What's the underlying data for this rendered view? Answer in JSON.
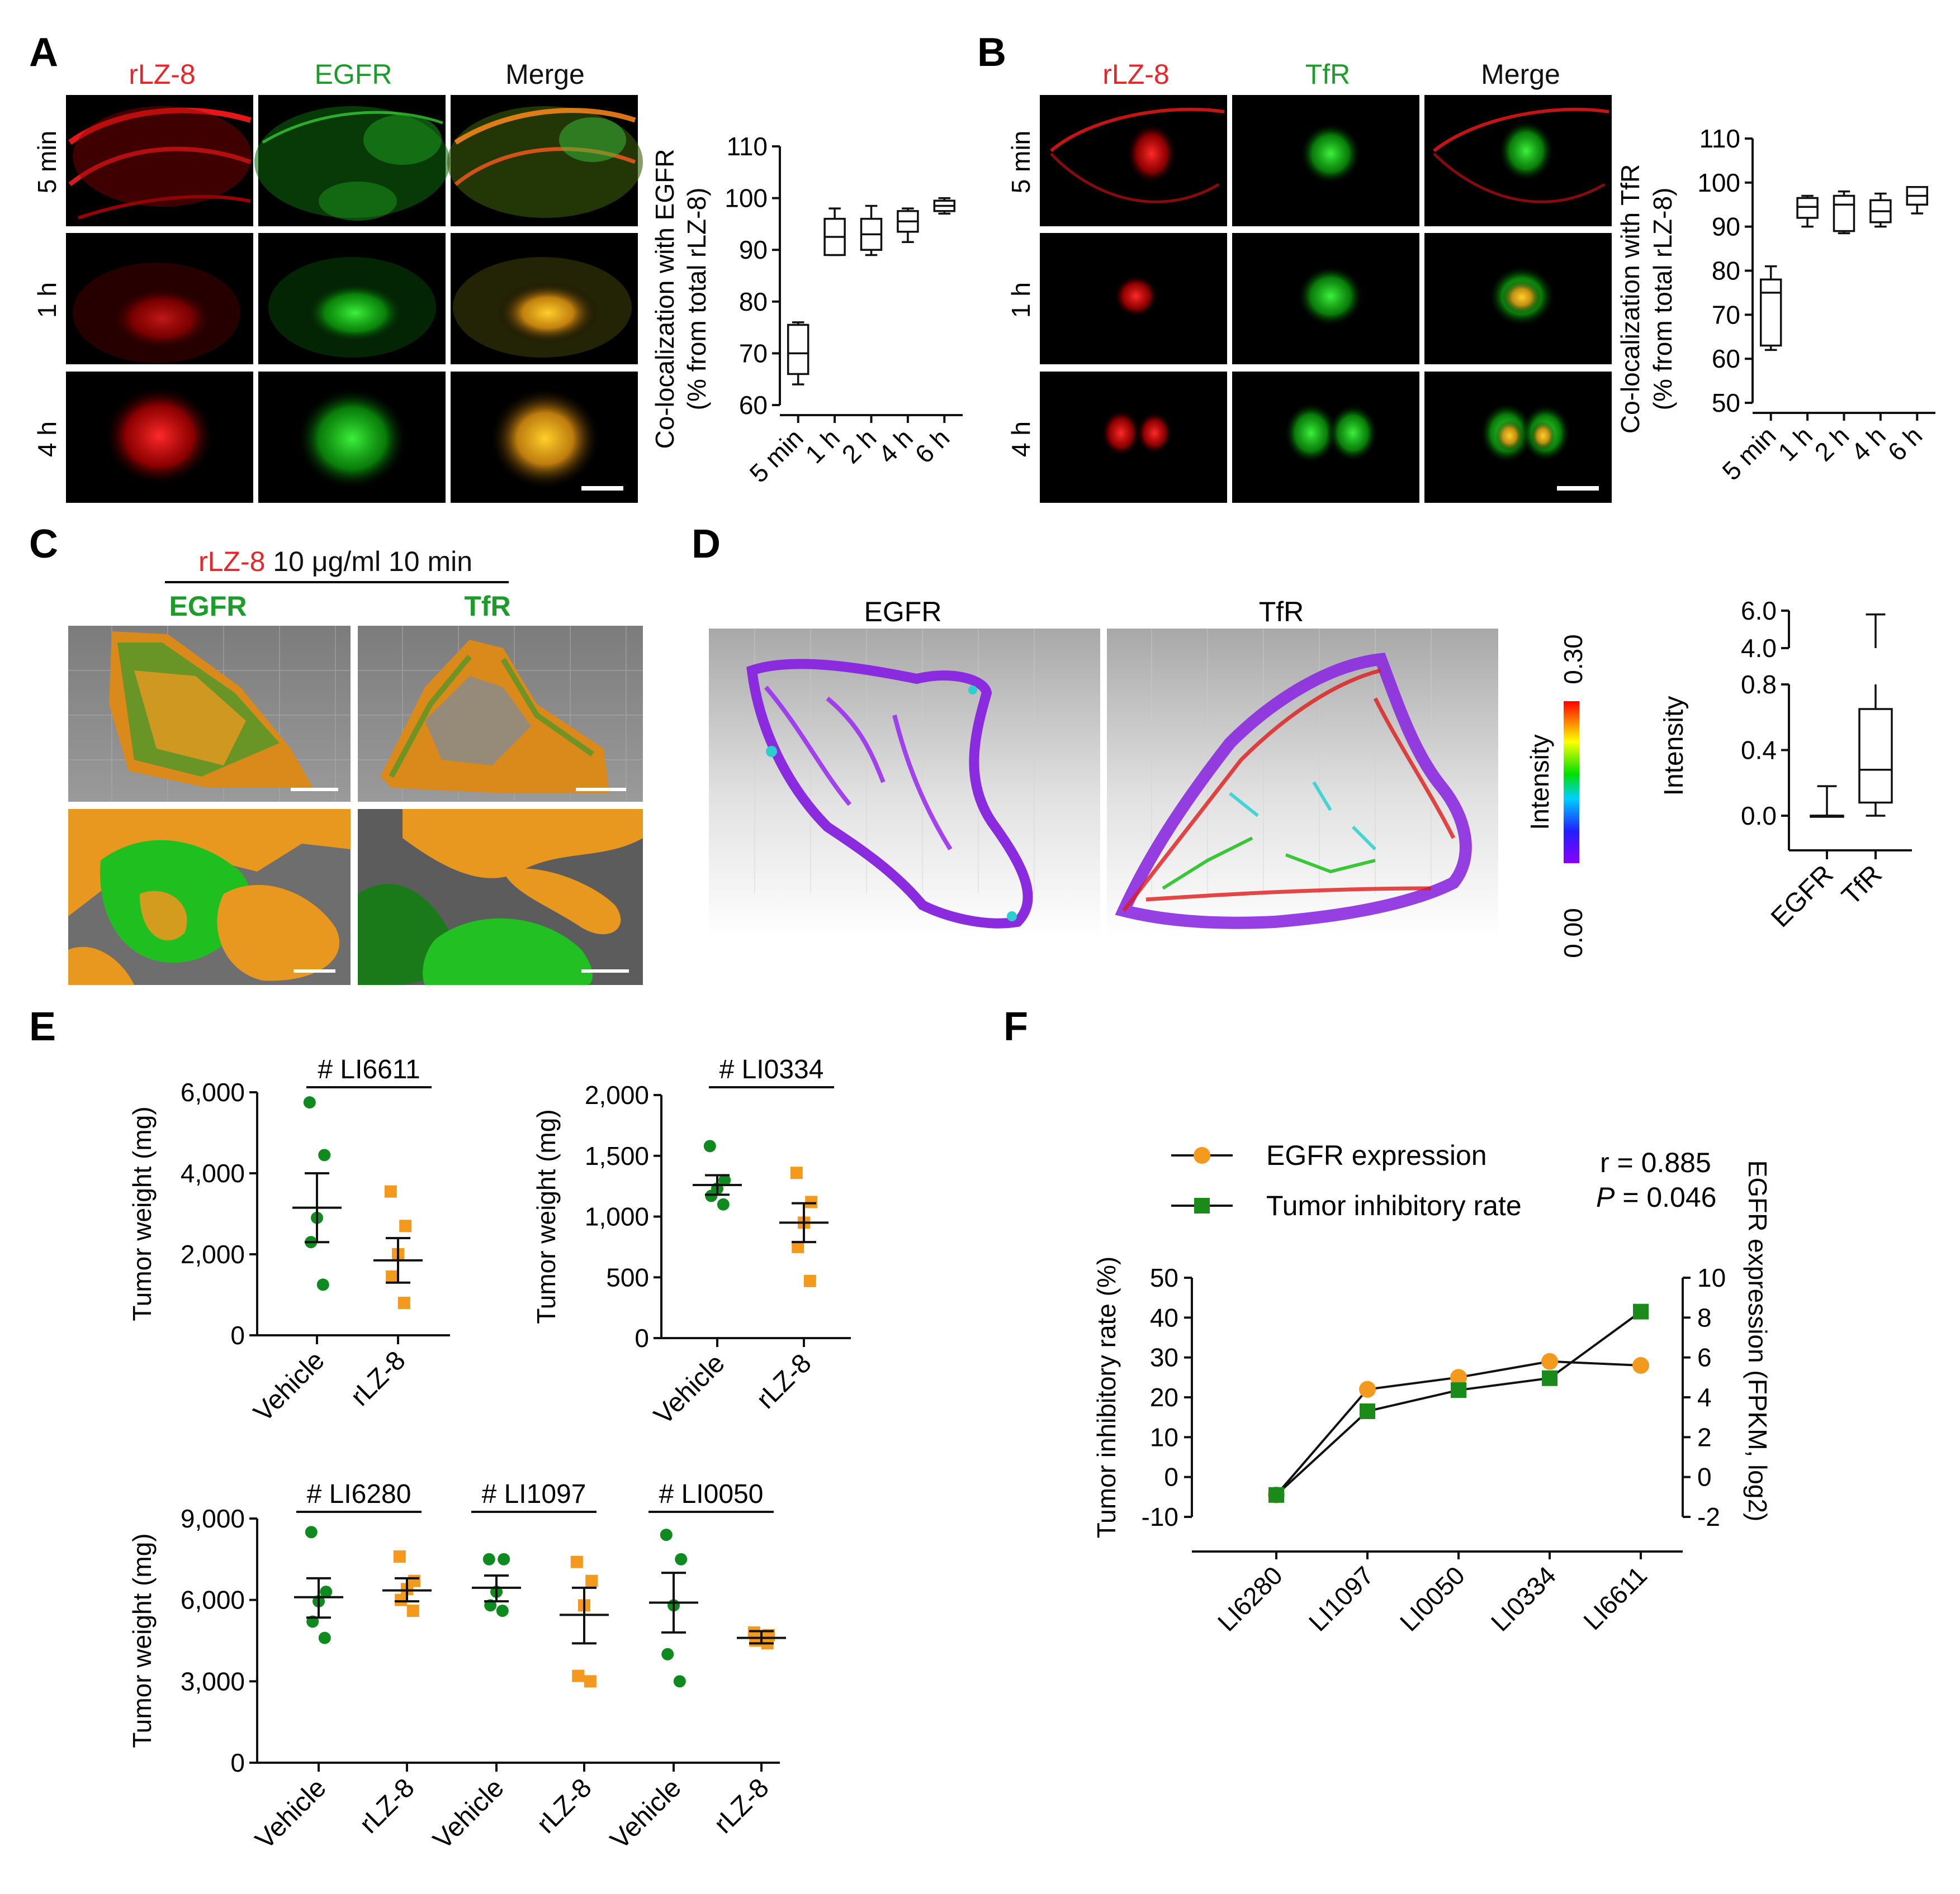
{
  "panels": {
    "A": {
      "letter": "A",
      "headers": [
        "rLZ-8",
        "EGFR",
        "Merge"
      ],
      "rows": [
        "5 min",
        "1 h",
        "4 h"
      ],
      "chart": {
        "type": "box",
        "ylabel_line1": "Co-localization with EGFR",
        "ylabel_line2": "(% from total rLZ-8)",
        "ylim": [
          60,
          110
        ],
        "yticks": [
          60,
          70,
          80,
          90,
          100,
          110
        ],
        "categories": [
          "5 min",
          "1 h",
          "2 h",
          "4 h",
          "6 h"
        ],
        "boxes": [
          {
            "min": 64,
            "q1": 66,
            "median": 70,
            "q3": 75.5,
            "max": 76
          },
          {
            "min": 89,
            "q1": 89,
            "median": 92.5,
            "q3": 96,
            "max": 98
          },
          {
            "min": 89,
            "q1": 90,
            "median": 93,
            "q3": 96,
            "max": 98.5
          },
          {
            "min": 91.5,
            "q1": 93.5,
            "median": 95.5,
            "q3": 97.5,
            "max": 98
          },
          {
            "min": 97,
            "q1": 97.5,
            "median": 98.5,
            "q3": 99.5,
            "max": 100
          }
        ]
      }
    },
    "B": {
      "letter": "B",
      "headers": [
        "rLZ-8",
        "TfR",
        "Merge"
      ],
      "rows": [
        "5 min",
        "1 h",
        "4 h"
      ],
      "chart": {
        "type": "box",
        "ylabel_line1": "Co-localization with TfR",
        "ylabel_line2": "(% from total rLZ-8)",
        "ylim": [
          50,
          110
        ],
        "yticks": [
          50,
          60,
          70,
          80,
          90,
          100,
          110
        ],
        "categories": [
          "5 min",
          "1 h",
          "2 h",
          "4 h",
          "6 h"
        ],
        "boxes": [
          {
            "min": 62,
            "q1": 63,
            "median": 75,
            "q3": 78,
            "max": 81
          },
          {
            "min": 90,
            "q1": 92,
            "median": 94.5,
            "q3": 96.5,
            "max": 97
          },
          {
            "min": 88.5,
            "q1": 89,
            "median": 95,
            "q3": 97,
            "max": 98
          },
          {
            "min": 90,
            "q1": 91,
            "median": 93.5,
            "q3": 96,
            "max": 97.5
          },
          {
            "min": 93,
            "q1": 95,
            "median": 97,
            "q3": 99,
            "max": 99
          }
        ]
      }
    },
    "C": {
      "letter": "C",
      "title_red": "rLZ-8",
      "title_rest": " 10 μg/ml 10 min",
      "col1": "EGFR",
      "col2": "TfR"
    },
    "D": {
      "letter": "D",
      "col1": "EGFR",
      "col2": "TfR",
      "colorbar_label": "Intensity",
      "colorbar_min": "0.00",
      "colorbar_max": "0.30",
      "chart": {
        "type": "box",
        "ylabel": "Intensity",
        "yticks_lower": [
          "0.0",
          "0.4",
          "0.8"
        ],
        "yticks_upper": [
          "4.0",
          "6.0"
        ],
        "categories": [
          "EGFR",
          "TfR"
        ],
        "boxes": [
          {
            "min": 0.0,
            "q1": 0.0,
            "median": 0.0,
            "q3": 0.0,
            "max": 0.18
          },
          {
            "min": 0.0,
            "q1": 0.08,
            "median": 0.28,
            "q3": 0.65,
            "max": 5.8
          }
        ]
      }
    },
    "E": {
      "letter": "E",
      "chart_data": [
        {
          "type": "scatter",
          "title": "# LI6611",
          "ylabel": "Tumor weight (mg)",
          "ylim": [
            0,
            6000
          ],
          "yticks": [
            "0",
            "2,000",
            "4,000",
            "6,000"
          ],
          "categories": [
            "Vehicle",
            "rLZ-8"
          ],
          "series": [
            {
              "name": "Vehicle",
              "values": [
                5750,
                4450,
                2900,
                2300,
                1250
              ],
              "mean": 3150,
              "sem_low": 2300,
              "sem_high": 4000
            },
            {
              "name": "rLZ-8",
              "values": [
                3550,
                2700,
                2000,
                1450,
                800
              ],
              "mean": 1850,
              "sem_low": 1300,
              "sem_high": 2400
            }
          ]
        },
        {
          "type": "scatter",
          "title": "# LI0334",
          "ylabel": "Tumor weight (mg)",
          "ylim": [
            0,
            2000
          ],
          "yticks": [
            "0",
            "500",
            "1,000",
            "1,500",
            "2,000"
          ],
          "categories": [
            "Vehicle",
            "rLZ-8"
          ],
          "series": [
            {
              "name": "Vehicle",
              "values": [
                1580,
                1300,
                1230,
                1170,
                1100
              ],
              "mean": 1260,
              "sem_low": 1180,
              "sem_high": 1340
            },
            {
              "name": "rLZ-8",
              "values": [
                1360,
                1120,
                950,
                750,
                470
              ],
              "mean": 950,
              "sem_low": 790,
              "sem_high": 1110
            }
          ]
        },
        {
          "type": "scatter",
          "titles": [
            "# LI6280",
            "# LI1097",
            "# LI0050"
          ],
          "ylabel": "Tumor weight (mg)",
          "ylim": [
            0,
            9000
          ],
          "yticks": [
            "0",
            "3,000",
            "6,000",
            "9,000"
          ],
          "categories": [
            "Vehicle",
            "rLZ-8",
            "Vehicle",
            "rLZ-8",
            "Vehicle",
            "rLZ-8"
          ],
          "series": [
            {
              "name": "Vehicle LI6280",
              "values": [
                8500,
                6300,
                5950,
                5200,
                4600
              ],
              "mean": 6100,
              "sem_low": 5350,
              "sem_high": 6800
            },
            {
              "name": "rLZ-8 LI6280",
              "values": [
                7600,
                6700,
                6400,
                6000,
                5600
              ],
              "mean": 6350,
              "sem_low": 5950,
              "sem_high": 6800
            },
            {
              "name": "Vehicle LI1097",
              "values": [
                7500,
                7500,
                6300,
                5800,
                5600
              ],
              "mean": 6450,
              "sem_low": 5950,
              "sem_high": 6900
            },
            {
              "name": "rLZ-8 LI1097",
              "values": [
                7400,
                6700,
                5800,
                3200,
                3000
              ],
              "mean": 5450,
              "sem_low": 4400,
              "sem_high": 6450
            },
            {
              "name": "Vehicle LI0050",
              "values": [
                8400,
                7500,
                5800,
                4000,
                3000
              ],
              "mean": 5900,
              "sem_low": 4800,
              "sem_high": 7000
            },
            {
              "name": "rLZ-8 LI0050",
              "values": [
                4800,
                4700,
                4600,
                4500,
                4400
              ],
              "mean": 4600,
              "sem_low": 4400,
              "sem_high": 4850
            }
          ]
        }
      ]
    },
    "F": {
      "letter": "F",
      "chart_data": {
        "type": "line",
        "categories": [
          "LI6280",
          "LI1097",
          "LI0050",
          "LI0334",
          "LI6611"
        ],
        "ylabel_left": "Tumor inhibitory rate (%)",
        "ylabel_right": "EGFR expression (FPKM, log2)",
        "ylim_left": [
          -10,
          50
        ],
        "yticks_left": [
          "-10",
          "0",
          "10",
          "20",
          "30",
          "40",
          "50"
        ],
        "ylim_right": [
          -2,
          10
        ],
        "yticks_right": [
          "-2",
          "0",
          "2",
          "4",
          "6",
          "8",
          "10"
        ],
        "series": [
          {
            "name": "EGFR expression",
            "axis": "right",
            "values": [
              -0.9,
              4.4,
              5.0,
              5.8,
              5.6
            ]
          },
          {
            "name": "Tumor inhibitory rate",
            "axis": "left",
            "values": [
              -4.5,
              16.5,
              21.8,
              24.8,
              41.5
            ]
          }
        ],
        "stat_r": "r = 0.885",
        "stat_p_label": "P",
        "stat_p_value": " = 0.046"
      }
    }
  },
  "colors": {
    "red": "#e8262a",
    "green": "#1d9b2b",
    "orange": "#f39a1e",
    "dark_green": "#1a8a1a",
    "marker_green": "#0f8a1f"
  }
}
